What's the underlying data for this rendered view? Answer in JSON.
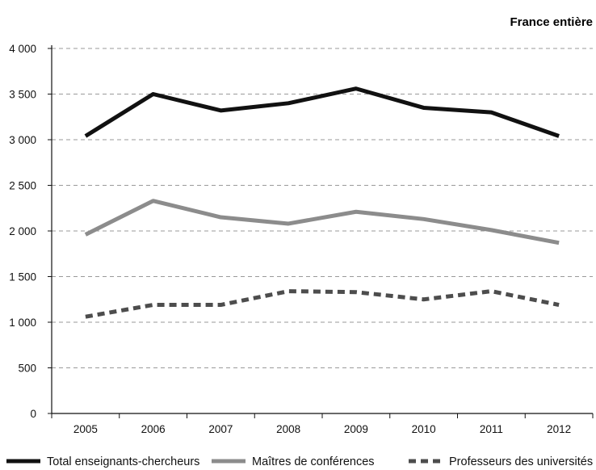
{
  "chart_data": {
    "type": "line",
    "subtitle": "France entière",
    "title": "",
    "xlabel": "",
    "ylabel": "",
    "x": [
      "2005",
      "2006",
      "2007",
      "2008",
      "2009",
      "2010",
      "2011",
      "2012"
    ],
    "ylim": [
      0,
      4000
    ],
    "yticks": [
      0,
      500,
      1000,
      1500,
      2000,
      2500,
      3000,
      3500,
      4000
    ],
    "ytick_labels": [
      "0",
      "500",
      "1 000",
      "1 500",
      "2 000",
      "2 500",
      "3 000",
      "3 500",
      "4 000"
    ],
    "grid": "horizontal dashed",
    "legend_position": "bottom",
    "series": [
      {
        "name": "Total enseignants-chercheurs",
        "values": [
          3040,
          3500,
          3320,
          3400,
          3560,
          3350,
          3300,
          3040
        ],
        "color": "#111111",
        "style": "solid"
      },
      {
        "name": "Maîtres de conférences",
        "values": [
          1960,
          2330,
          2150,
          2080,
          2210,
          2130,
          2010,
          1870
        ],
        "color": "#8c8c8c",
        "style": "solid"
      },
      {
        "name": "Professeurs des universités",
        "values": [
          1060,
          1190,
          1190,
          1340,
          1330,
          1250,
          1340,
          1190
        ],
        "color": "#4d4d4d",
        "style": "dashed"
      }
    ]
  }
}
